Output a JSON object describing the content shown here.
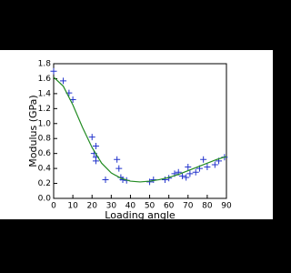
{
  "chart_data": {
    "type": "scatter",
    "xlabel": "Loading angle",
    "ylabel": "Modulus (GPa)",
    "xlim": [
      0,
      90
    ],
    "xticks": [
      0,
      10,
      20,
      30,
      40,
      50,
      60,
      70,
      80,
      90
    ],
    "ylim": [
      0,
      1.8
    ],
    "yticks": [
      {
        "value": 0,
        "label": "0.0"
      },
      0.2,
      0.4,
      0.6,
      0.8,
      {
        "value": 1,
        "label": "1.0"
      },
      1.2,
      1.4,
      1.6,
      1.8
    ],
    "series": [
      {
        "color": "#2233cc",
        "marker": "+",
        "x": [
          0,
          5,
          8,
          10,
          20,
          21,
          22,
          22,
          22,
          27,
          33,
          34,
          35,
          36,
          38,
          50,
          52,
          58,
          60,
          63,
          65,
          67,
          69,
          70,
          71,
          74,
          76,
          78,
          80,
          84,
          86,
          89
        ],
        "values": [
          1.7,
          1.57,
          1.41,
          1.32,
          0.82,
          0.6,
          0.7,
          0.55,
          0.5,
          0.25,
          0.52,
          0.4,
          0.28,
          0.25,
          0.24,
          0.22,
          0.25,
          0.25,
          0.27,
          0.33,
          0.35,
          0.3,
          0.28,
          0.42,
          0.33,
          0.35,
          0.4,
          0.52,
          0.42,
          0.45,
          0.5,
          0.55
        ]
      },
      {
        "color": "#228b22",
        "marker": "line",
        "x": [
          0,
          5,
          10,
          15,
          20,
          25,
          30,
          35,
          40,
          45,
          50,
          55,
          60,
          65,
          70,
          75,
          80,
          85,
          90
        ],
        "values": [
          1.62,
          1.5,
          1.25,
          0.95,
          0.68,
          0.47,
          0.34,
          0.27,
          0.23,
          0.22,
          0.23,
          0.25,
          0.28,
          0.32,
          0.37,
          0.42,
          0.47,
          0.52,
          0.56
        ]
      }
    ]
  }
}
